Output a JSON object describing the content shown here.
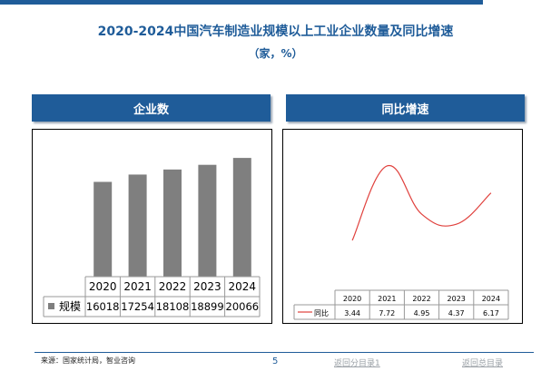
{
  "title": "2020-2024中国汽车制造业规模以上工业企业数量及同比增速",
  "subtitle": "（家，%）",
  "colors": {
    "accent": "#1f5c99",
    "bar": "#7f7f7f",
    "line": "#e0413d"
  },
  "panels": {
    "left_header": "企业数",
    "right_header": "同比增速"
  },
  "chart_data": [
    {
      "type": "bar",
      "categories": [
        "2020",
        "2021",
        "2022",
        "2023",
        "2024"
      ],
      "series": [
        {
          "name": "规模",
          "values": [
            16018,
            17254,
            18108,
            18899,
            20066
          ]
        }
      ],
      "ylim": [
        0,
        21000
      ],
      "grid": false,
      "legend": "table-below",
      "data_table": true
    },
    {
      "type": "line",
      "categories": [
        "2020",
        "2021",
        "2022",
        "2023",
        "2024"
      ],
      "series": [
        {
          "name": "同比",
          "values": [
            3.44,
            7.72,
            4.95,
            4.37,
            6.17
          ]
        }
      ],
      "value_labels": [
        "3.44",
        "7.72",
        "4.95",
        "4.37",
        "6.17"
      ],
      "ylim": [
        2.5,
        8.5
      ],
      "smooth": true,
      "grid": false,
      "legend": "table-below",
      "data_table": true
    }
  ],
  "footer": {
    "source": "来源：国家统计局，智业咨询",
    "page": "5",
    "link1": "返回分目录1",
    "link2": "返回总目录"
  }
}
